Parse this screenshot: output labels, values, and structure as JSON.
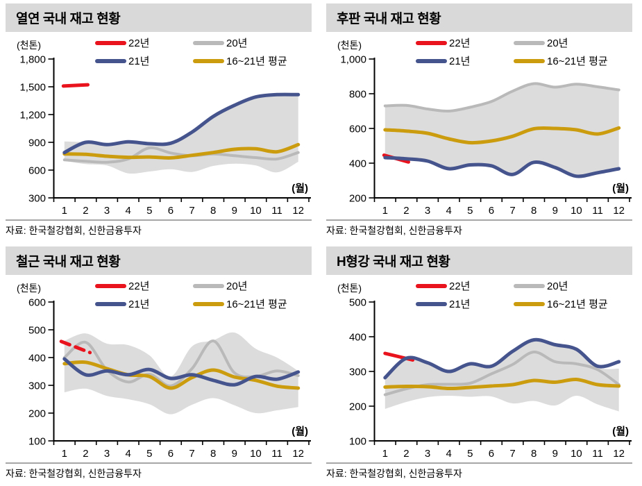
{
  "colors": {
    "red": "#e8131d",
    "navy": "#46548e",
    "gray": "#b9b9b9",
    "gold": "#cc9c0f",
    "band": "#dcdcdc",
    "title_bg": "#d9d9d9",
    "divider": "#a6a6a6",
    "axis": "#000000",
    "text": "#000000"
  },
  "chart_data": [
    {
      "id": "hot-rolled",
      "type": "line",
      "title": "열연 국내 재고 현황",
      "y_unit": "(천톤)",
      "x_unit": "(월)",
      "source": "자료: 한국철강협회, 신한금융투자",
      "x_tick_labels": [
        "1",
        "2",
        "3",
        "4",
        "5",
        "6",
        "7",
        "8",
        "9",
        "10",
        "11",
        "12"
      ],
      "ylim": [
        300,
        1800
      ],
      "y_tick_labels": [
        "300",
        "600",
        "900",
        "1,200",
        "1,500",
        "1,800"
      ],
      "band": {
        "high": [
          910,
          900,
          875,
          905,
          885,
          890,
          1010,
          1180,
          1300,
          1390,
          1415,
          1415
        ],
        "low": [
          700,
          665,
          650,
          565,
          585,
          610,
          580,
          645,
          670,
          650,
          575,
          690
        ]
      },
      "series": [
        {
          "key": "y22",
          "name": "22년",
          "color_key": "red",
          "dash": false,
          "months": [
            1,
            2
          ],
          "values": [
            1508,
            1522
          ],
          "x_draw": [
            0.95,
            2.1
          ]
        },
        {
          "key": "y20",
          "name": "20년",
          "color_key": "gray",
          "dash": false,
          "months": [
            1,
            2,
            3,
            4,
            5,
            6,
            7,
            8,
            9,
            10,
            11,
            12
          ],
          "values": [
            710,
            695,
            685,
            720,
            840,
            785,
            755,
            775,
            755,
            735,
            720,
            790
          ]
        },
        {
          "key": "y21",
          "name": "21년",
          "color_key": "navy",
          "dash": false,
          "months": [
            1,
            2,
            3,
            4,
            5,
            6,
            7,
            8,
            9,
            10,
            11,
            12
          ],
          "values": [
            790,
            900,
            875,
            905,
            885,
            890,
            1010,
            1180,
            1300,
            1390,
            1415,
            1415
          ]
        },
        {
          "key": "avg",
          "name": "16~21년 평균",
          "color_key": "gold",
          "dash": false,
          "months": [
            1,
            2,
            3,
            4,
            5,
            6,
            7,
            8,
            9,
            10,
            11,
            12
          ],
          "values": [
            775,
            770,
            750,
            738,
            742,
            732,
            760,
            790,
            825,
            830,
            798,
            875
          ]
        }
      ]
    },
    {
      "id": "plate",
      "type": "line",
      "title": "후판 국내 재고 현황",
      "y_unit": "(천톤)",
      "x_unit": "(월)",
      "source": "자료: 한국철강협회, 신한금융투자",
      "x_tick_labels": [
        "1",
        "2",
        "3",
        "4",
        "5",
        "6",
        "7",
        "8",
        "9",
        "10",
        "11",
        "12"
      ],
      "ylim": [
        200,
        1000
      ],
      "y_tick_labels": [
        "200",
        "400",
        "600",
        "800",
        "1,000"
      ],
      "band": {
        "high": [
          730,
          733,
          712,
          700,
          722,
          755,
          815,
          858,
          838,
          855,
          840,
          822
        ],
        "low": [
          432,
          425,
          412,
          368,
          390,
          385,
          335,
          405,
          375,
          325,
          345,
          368
        ]
      },
      "series": [
        {
          "key": "y22",
          "name": "22년",
          "color_key": "red",
          "dash": false,
          "months": [
            1,
            2
          ],
          "values": [
            446,
            407
          ],
          "x_draw": [
            0.95,
            2.1
          ]
        },
        {
          "key": "y20",
          "name": "20년",
          "color_key": "gray",
          "dash": false,
          "months": [
            1,
            2,
            3,
            4,
            5,
            6,
            7,
            8,
            9,
            10,
            11,
            12
          ],
          "values": [
            730,
            733,
            712,
            700,
            722,
            755,
            815,
            858,
            838,
            855,
            840,
            822
          ]
        },
        {
          "key": "y21",
          "name": "21년",
          "color_key": "navy",
          "dash": false,
          "months": [
            1,
            2,
            3,
            4,
            5,
            6,
            7,
            8,
            9,
            10,
            11,
            12
          ],
          "values": [
            432,
            425,
            412,
            368,
            390,
            385,
            335,
            405,
            375,
            325,
            345,
            368
          ]
        },
        {
          "key": "avg",
          "name": "16~21년 평균",
          "color_key": "gold",
          "dash": false,
          "months": [
            1,
            2,
            3,
            4,
            5,
            6,
            7,
            8,
            9,
            10,
            11,
            12
          ],
          "values": [
            592,
            585,
            572,
            540,
            518,
            528,
            555,
            598,
            600,
            592,
            568,
            603
          ]
        }
      ]
    },
    {
      "id": "rebar",
      "type": "line",
      "title": "철근 국내 재고 현황",
      "y_unit": "(천톤)",
      "x_unit": "(월)",
      "source": "자료: 한국철강협회, 신한금융투자",
      "x_tick_labels": [
        "1",
        "2",
        "3",
        "4",
        "5",
        "6",
        "7",
        "8",
        "9",
        "10",
        "11",
        "12"
      ],
      "ylim": [
        100,
        600
      ],
      "y_tick_labels": [
        "100",
        "200",
        "300",
        "400",
        "500",
        "600"
      ],
      "band": {
        "high": [
          460,
          487,
          450,
          445,
          408,
          332,
          440,
          462,
          490,
          432,
          400,
          352
        ],
        "low": [
          275,
          288,
          262,
          250,
          232,
          196,
          230,
          254,
          228,
          200,
          210,
          222
        ]
      },
      "series": [
        {
          "key": "y22",
          "name": "22년",
          "color_key": "red",
          "dash": true,
          "months": [
            1,
            2
          ],
          "values": [
            458,
            418
          ],
          "x_draw": [
            0.85,
            2.2
          ]
        },
        {
          "key": "y20",
          "name": "20년",
          "color_key": "gray",
          "dash": false,
          "months": [
            1,
            2,
            3,
            4,
            5,
            6,
            7,
            8,
            9,
            10,
            11,
            12
          ],
          "values": [
            400,
            455,
            355,
            312,
            340,
            298,
            360,
            460,
            345,
            332,
            352,
            335
          ]
        },
        {
          "key": "y21",
          "name": "21년",
          "color_key": "navy",
          "dash": false,
          "months": [
            1,
            2,
            3,
            4,
            5,
            6,
            7,
            8,
            9,
            10,
            11,
            12
          ],
          "values": [
            395,
            338,
            352,
            338,
            357,
            325,
            338,
            318,
            302,
            332,
            322,
            348
          ]
        },
        {
          "key": "avg",
          "name": "16~21년 평균",
          "color_key": "gold",
          "dash": false,
          "months": [
            1,
            2,
            3,
            4,
            5,
            6,
            7,
            8,
            9,
            10,
            11,
            12
          ],
          "values": [
            378,
            383,
            360,
            338,
            332,
            290,
            328,
            355,
            330,
            318,
            297,
            290
          ]
        }
      ]
    },
    {
      "id": "h-beam",
      "type": "line",
      "title": "H형강 국내 재고 현황",
      "y_unit": "(천톤)",
      "x_unit": "(월)",
      "source": "자료: 한국철강협회, 신한금융투자",
      "x_tick_labels": [
        "1",
        "2",
        "3",
        "4",
        "5",
        "6",
        "7",
        "8",
        "9",
        "10",
        "11",
        "12"
      ],
      "ylim": [
        100,
        500
      ],
      "y_tick_labels": [
        "100",
        "200",
        "300",
        "400",
        "500"
      ],
      "band": {
        "high": [
          282,
          338,
          325,
          300,
          322,
          315,
          358,
          391,
          377,
          364,
          312,
          308
        ],
        "low": [
          192,
          212,
          226,
          230,
          227,
          228,
          208,
          215,
          202,
          230,
          205,
          185
        ]
      },
      "series": [
        {
          "key": "y22",
          "name": "22년",
          "color_key": "red",
          "dash": false,
          "months": [
            1,
            2
          ],
          "values": [
            352,
            333
          ],
          "x_draw": [
            1,
            2.3
          ]
        },
        {
          "key": "y20",
          "name": "20년",
          "color_key": "gray",
          "dash": false,
          "months": [
            1,
            2,
            3,
            4,
            5,
            6,
            7,
            8,
            9,
            10,
            11,
            12
          ],
          "values": [
            233,
            250,
            262,
            263,
            266,
            293,
            320,
            356,
            328,
            322,
            305,
            262
          ]
        },
        {
          "key": "y21",
          "name": "21년",
          "color_key": "navy",
          "dash": false,
          "months": [
            1,
            2,
            3,
            4,
            5,
            6,
            7,
            8,
            9,
            10,
            11,
            12
          ],
          "values": [
            282,
            338,
            325,
            300,
            322,
            315,
            358,
            391,
            377,
            364,
            315,
            328
          ]
        },
        {
          "key": "avg",
          "name": "16~21년 평균",
          "color_key": "gold",
          "dash": false,
          "months": [
            1,
            2,
            3,
            4,
            5,
            6,
            7,
            8,
            9,
            10,
            11,
            12
          ],
          "values": [
            255,
            257,
            256,
            251,
            254,
            258,
            262,
            274,
            269,
            277,
            262,
            258
          ]
        }
      ]
    }
  ]
}
